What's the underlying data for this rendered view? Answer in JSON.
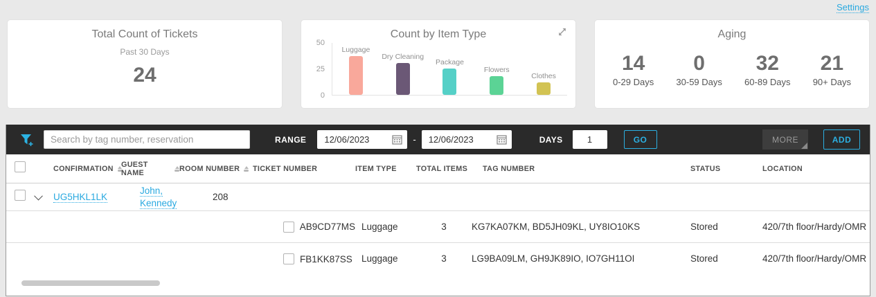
{
  "accent": "#29a9e0",
  "page": {
    "settings_label": "Settings"
  },
  "cards": {
    "tickets": {
      "title": "Total Count of Tickets",
      "subtitle": "Past 30 Days",
      "value": "24"
    },
    "aging": {
      "title": "Aging",
      "buckets": [
        {
          "value": "14",
          "label": "0-29 Days"
        },
        {
          "value": "0",
          "label": "30-59 Days"
        },
        {
          "value": "32",
          "label": "60-89 Days"
        },
        {
          "value": "21",
          "label": "90+ Days"
        }
      ]
    }
  },
  "chart_data": {
    "type": "bar",
    "title": "Count by Item Type",
    "categories": [
      "Luggage",
      "Dry Cleaning",
      "Package",
      "Flowers",
      "Clothes"
    ],
    "values": [
      37,
      30,
      25,
      18,
      12
    ],
    "colors": [
      "#f9a89b",
      "#6b5876",
      "#55d0c7",
      "#5bd395",
      "#d2c353"
    ],
    "xlabel": "",
    "ylabel": "",
    "ylim": [
      0,
      50
    ],
    "yticks": [
      0,
      25,
      50
    ],
    "grid": false,
    "legend": "none",
    "expand_icon": "resize-diagonal-arrow"
  },
  "toolbar": {
    "filter_icon": "funnel-plus-icon",
    "search_placeholder": "Search by tag number, reservation",
    "search_value": "",
    "range_label": "RANGE",
    "date_from": "12/06/2023",
    "date_to": "12/06/2023",
    "range_separator": "-",
    "days_label": "DAYS",
    "days_value": "1",
    "go_label": "GO",
    "more_label": "MORE",
    "add_label": "ADD"
  },
  "table": {
    "headers": [
      "CONFIRMATION",
      "GUEST NAME",
      "ROOM NUMBER",
      "TICKET NUMBER",
      "ITEM TYPE",
      "TOTAL ITEMS",
      "TAG NUMBER",
      "STATUS",
      "LOCATION"
    ],
    "group": {
      "confirmation": "UG5HKL1LK",
      "guest_name": "John, Kennedy",
      "room_number": "208"
    },
    "rows": [
      {
        "ticket_number": "AB9CD77MS",
        "item_type": "Luggage",
        "total_items": "3",
        "tag_number": "KG7KA07KM, BD5JH09KL, UY8IO10KS",
        "status": "Stored",
        "location": "420/7th floor/Hardy/OMR"
      },
      {
        "ticket_number": "FB1KK87SS",
        "item_type": "Luggage",
        "total_items": "3",
        "tag_number": "LG9BA09LM, GH9JK89IO, IO7GH11OI",
        "status": "Stored",
        "location": "420/7th floor/Hardy/OMR"
      }
    ]
  }
}
